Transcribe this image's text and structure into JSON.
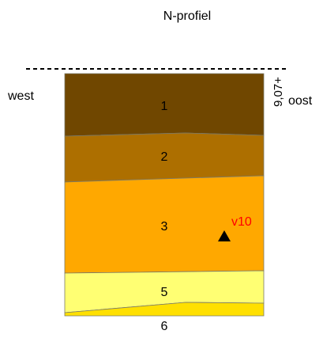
{
  "profile": {
    "title": "N-profiel",
    "left_label": "west",
    "right_label": "oost",
    "elevation_label": "9,07+",
    "marker_label": "v10",
    "marker_color": "#ff0000",
    "layers": [
      {
        "label": "1",
        "color": "#704700"
      },
      {
        "label": "2",
        "color": "#ad6f00"
      },
      {
        "label": "3",
        "color": "#ffa800"
      },
      {
        "label": "5",
        "color": "#ffff73"
      },
      {
        "label": "6",
        "color": "#ffe000"
      }
    ]
  }
}
